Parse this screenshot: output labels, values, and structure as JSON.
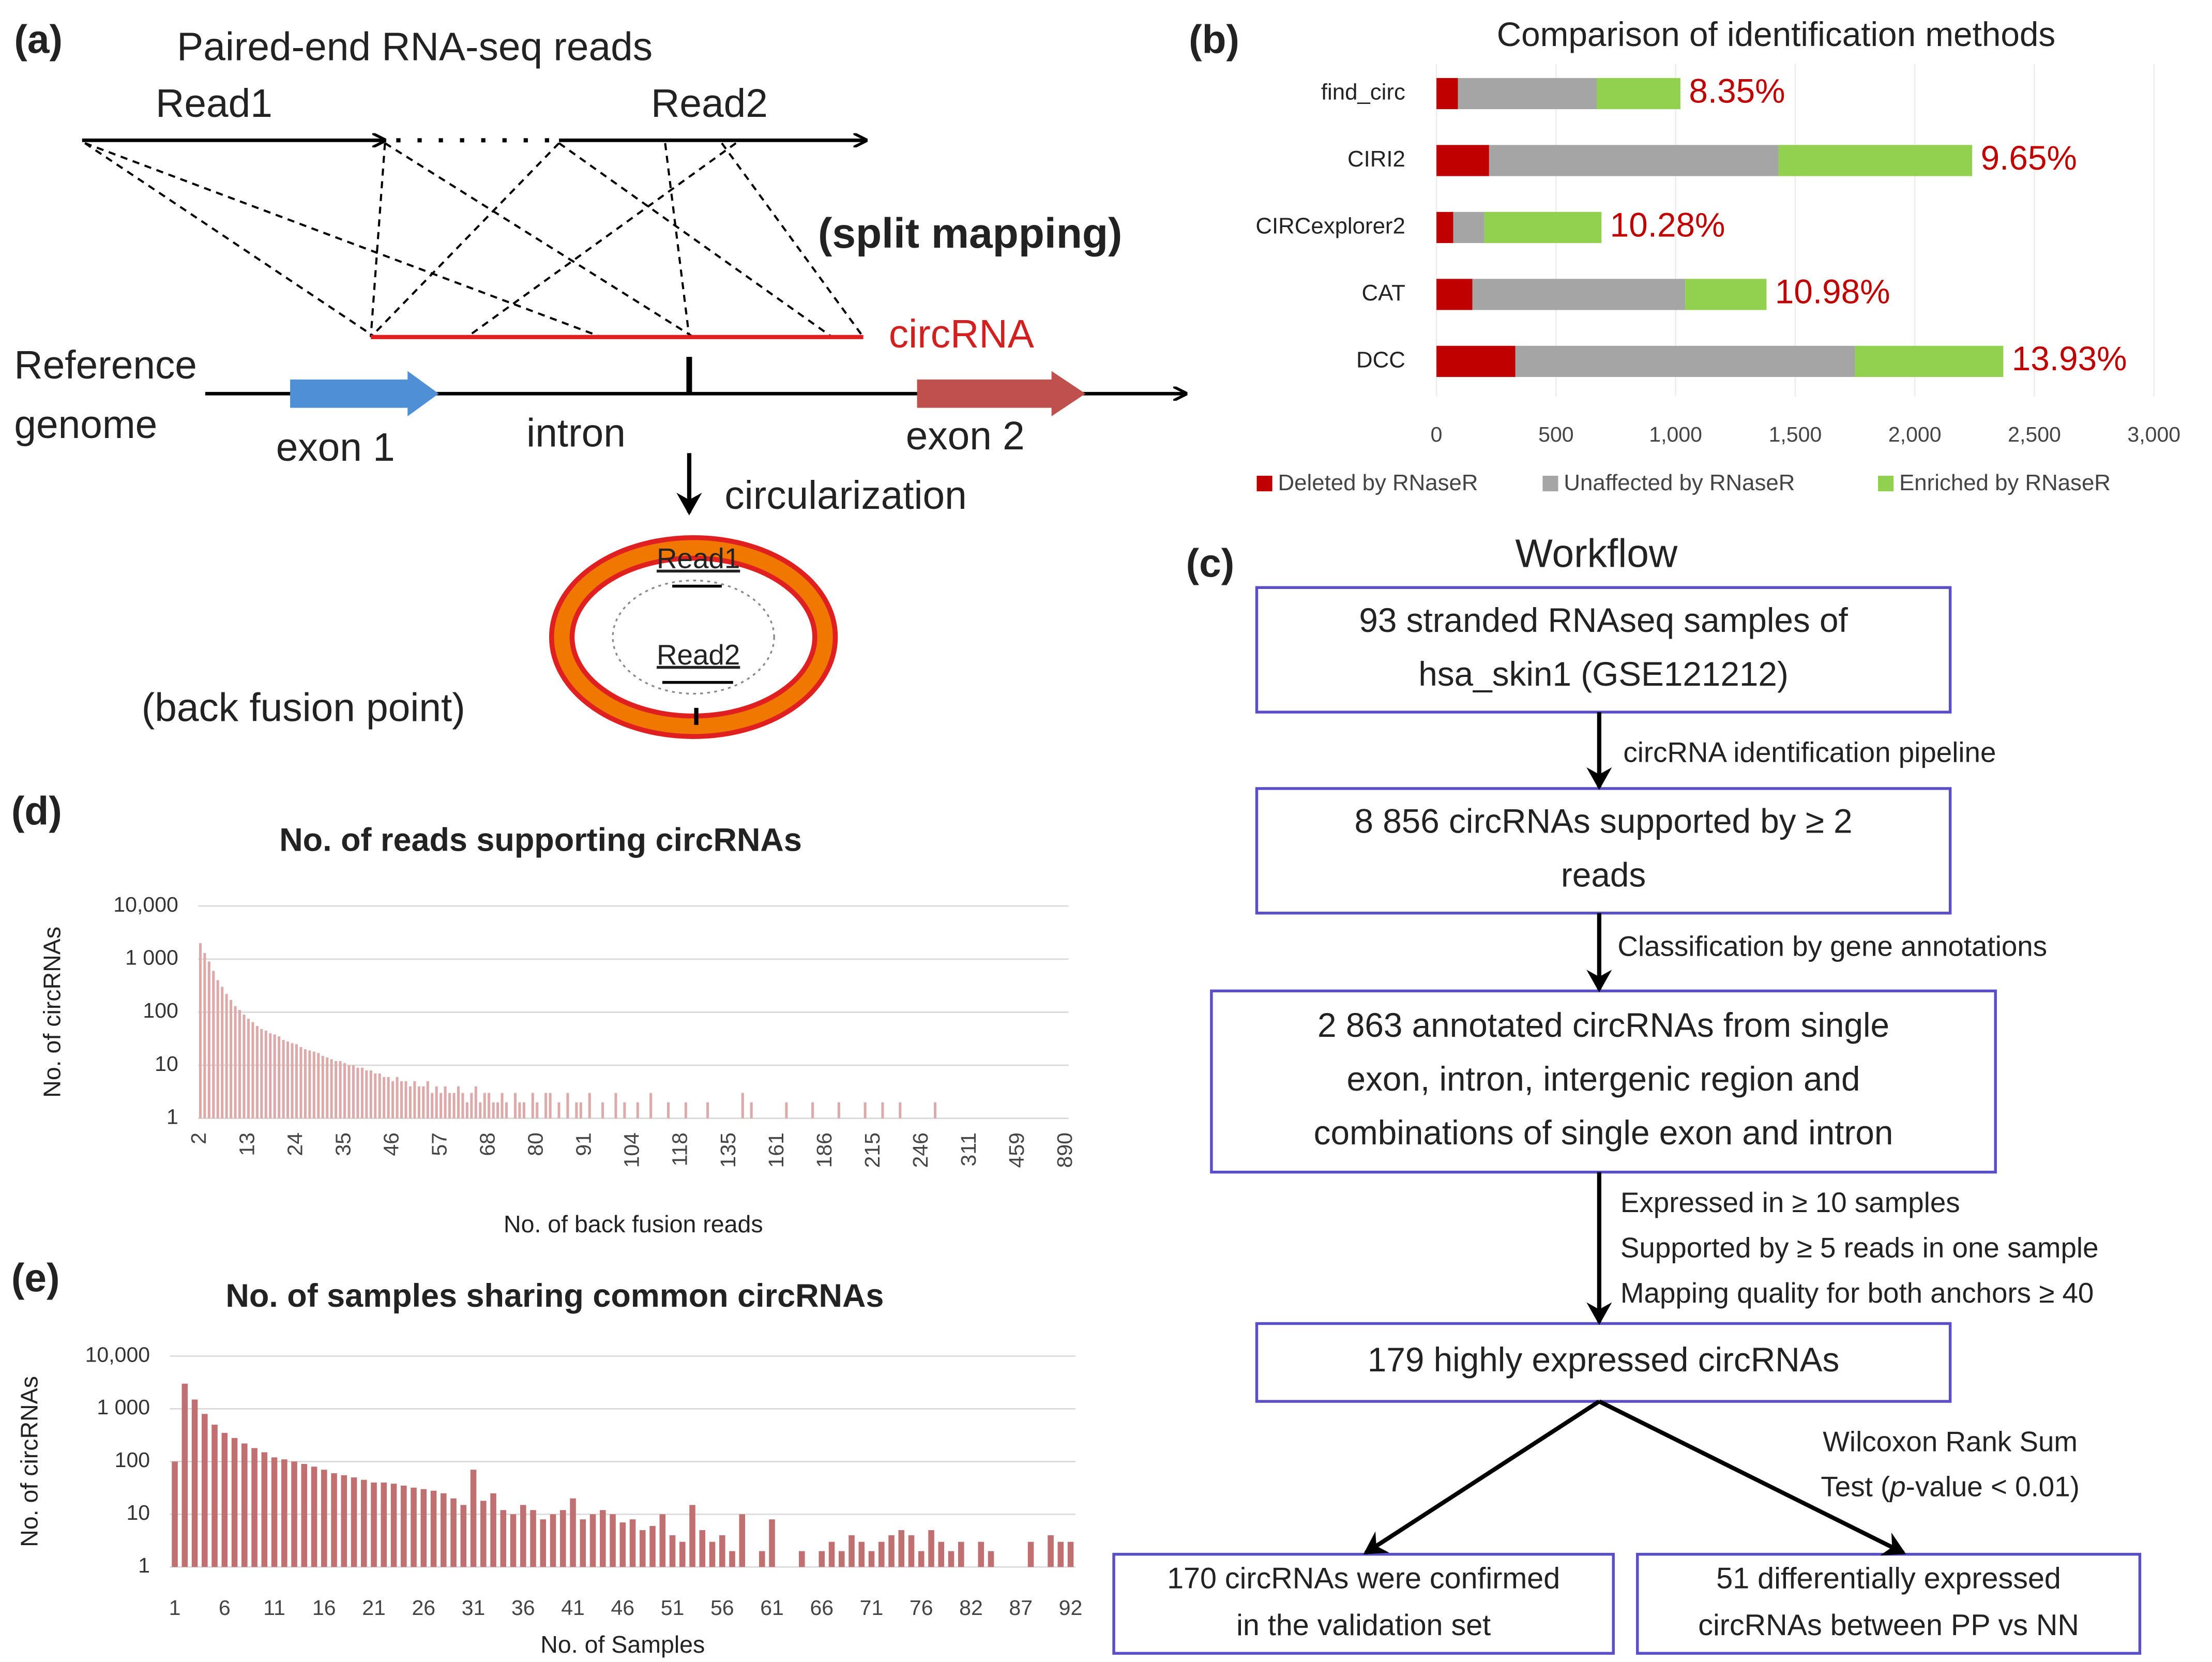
{
  "panel_labels": [
    "(a)",
    "(b)",
    "(c)",
    "(d)",
    "(e)"
  ],
  "diagram_a": {
    "title": "Paired-end RNA-seq reads",
    "read1": "Read1",
    "read2": "Read2",
    "split_mapping": "(split mapping)",
    "circrna": "circRNA",
    "reference": [
      "Reference",
      "genome"
    ],
    "exon1": "exon 1",
    "intron": "intron",
    "exon2": "exon 2",
    "circularization": "circularization",
    "circle_read1": "Read1",
    "circle_read2": "Read2",
    "back_fusion": "(back fusion point)"
  },
  "chart_data": [
    {
      "type": "stacked_bar_h",
      "title": "Comparison of identification methods",
      "categories": [
        "find_circ",
        "CIRI2",
        "CIRCexplorer2",
        "CAT",
        "DCC"
      ],
      "series": [
        {
          "name": "Deleted by RNaseR",
          "color": "#c00000",
          "values": [
            90,
            220,
            70,
            150,
            330
          ]
        },
        {
          "name": "Unaffected by RNaseR",
          "color": "#a5a5a5",
          "values": [
            580,
            1210,
            130,
            890,
            1420
          ]
        },
        {
          "name": "Enriched by RNaseR",
          "color": "#92d050",
          "values": [
            350,
            810,
            490,
            340,
            620
          ]
        }
      ],
      "annotations": [
        "8.35%",
        "9.65%",
        "10.28%",
        "10.98%",
        "13.93%"
      ],
      "annotation_color": "#c00000",
      "xlim": [
        0,
        3000
      ],
      "xticks": [
        0,
        500,
        {
          "value": 1000,
          "label": "1,000"
        },
        {
          "value": 1500,
          "label": "1,500"
        },
        {
          "value": 2000,
          "label": "2,000"
        },
        {
          "value": 2500,
          "label": "2,500"
        },
        {
          "value": 3000,
          "label": "3,000"
        }
      ],
      "legend": "bottom"
    },
    {
      "type": "bar",
      "title": "No. of reads supporting circRNAs",
      "x_label": "No. of back fusion reads",
      "y_label": "No. of circRNAs",
      "categories": [
        "2",
        null,
        null,
        null,
        null,
        null,
        null,
        null,
        null,
        null,
        null,
        "13",
        null,
        null,
        null,
        null,
        null,
        null,
        null,
        null,
        null,
        null,
        "24",
        null,
        null,
        null,
        null,
        null,
        null,
        null,
        null,
        null,
        null,
        "35",
        null,
        null,
        null,
        null,
        null,
        null,
        null,
        null,
        null,
        null,
        "46",
        null,
        null,
        null,
        null,
        null,
        null,
        null,
        null,
        null,
        null,
        "57",
        null,
        null,
        null,
        null,
        null,
        null,
        null,
        null,
        null,
        null,
        "68",
        null,
        null,
        null,
        null,
        null,
        null,
        null,
        null,
        null,
        null,
        "80",
        null,
        null,
        null,
        null,
        null,
        null,
        null,
        null,
        null,
        null,
        "91",
        null,
        null,
        null,
        null,
        null,
        null,
        null,
        null,
        null,
        null,
        "104",
        null,
        null,
        null,
        null,
        null,
        null,
        null,
        null,
        null,
        null,
        "118",
        null,
        null,
        null,
        null,
        null,
        null,
        null,
        null,
        null,
        null,
        "135",
        null,
        null,
        null,
        null,
        null,
        null,
        null,
        null,
        null,
        null,
        "161",
        null,
        null,
        null,
        null,
        null,
        null,
        null,
        null,
        null,
        null,
        "186",
        null,
        null,
        null,
        null,
        null,
        null,
        null,
        null,
        null,
        null,
        "215",
        null,
        null,
        null,
        null,
        null,
        null,
        null,
        null,
        null,
        null,
        "246",
        null,
        null,
        null,
        null,
        null,
        null,
        null,
        null,
        null,
        null,
        "311",
        null,
        null,
        null,
        null,
        null,
        null,
        null,
        null,
        null,
        null,
        "459",
        null,
        null,
        null,
        null,
        null,
        null,
        null,
        null,
        null,
        null,
        "890"
      ],
      "values": [
        2000,
        1300,
        900,
        600,
        400,
        300,
        220,
        170,
        130,
        110,
        90,
        75,
        65,
        55,
        48,
        45,
        40,
        38,
        35,
        30,
        28,
        26,
        25,
        22,
        20,
        19,
        18,
        17,
        15,
        14,
        13,
        12,
        12,
        11,
        10,
        10,
        9,
        9,
        8,
        8,
        7,
        7,
        6,
        6,
        5,
        6,
        5,
        5,
        4,
        5,
        4,
        4,
        5,
        3,
        4,
        3,
        4,
        3,
        3,
        4,
        3,
        2,
        3,
        4,
        2,
        3,
        3,
        2,
        2,
        3,
        2,
        null,
        3,
        2,
        2,
        null,
        3,
        2,
        null,
        3,
        3,
        null,
        2,
        null,
        3,
        null,
        2,
        2,
        null,
        3,
        null,
        null,
        2,
        null,
        null,
        3,
        null,
        2,
        null,
        null,
        2,
        null,
        null,
        3,
        null,
        null,
        null,
        2,
        null,
        null,
        null,
        2,
        null,
        null,
        null,
        null,
        2,
        null,
        null,
        null,
        null,
        null,
        null,
        null,
        3,
        null,
        2,
        null,
        null,
        null,
        null,
        null,
        null,
        null,
        2,
        null,
        null,
        null,
        null,
        null,
        2,
        null,
        null,
        null,
        null,
        null,
        2,
        null,
        null,
        null,
        null,
        null,
        2,
        null,
        null,
        null,
        2,
        null,
        null,
        null,
        2,
        null,
        null,
        null,
        null,
        null,
        null,
        null,
        2,
        null,
        null,
        null,
        null,
        null,
        null,
        null,
        null,
        null,
        null,
        null,
        null,
        null,
        null,
        null,
        null,
        null,
        null,
        null,
        null,
        null,
        null,
        null,
        null,
        null,
        null,
        null,
        null,
        null,
        null
      ],
      "color": "#dcaaaa",
      "log_y": true,
      "ylim": [
        1,
        10000
      ],
      "yticks": [
        1,
        10,
        100,
        {
          "value": 1000,
          "label": "1 000"
        },
        {
          "value": 10000,
          "label": "10,000"
        }
      ],
      "grid": true
    },
    {
      "type": "bar",
      "title": "No. of samples sharing common circRNAs",
      "x_label": "No. of Samples",
      "y_label": "No. of circRNAs",
      "categories": [
        "1",
        null,
        null,
        null,
        null,
        "6",
        null,
        null,
        null,
        null,
        "11",
        null,
        null,
        null,
        null,
        "16",
        null,
        null,
        null,
        null,
        "21",
        null,
        null,
        null,
        null,
        "26",
        null,
        null,
        null,
        null,
        "31",
        null,
        null,
        null,
        null,
        "36",
        null,
        null,
        null,
        null,
        "41",
        null,
        null,
        null,
        null,
        "46",
        null,
        null,
        null,
        null,
        "51",
        null,
        null,
        null,
        null,
        "56",
        null,
        null,
        null,
        null,
        "61",
        null,
        null,
        null,
        null,
        "66",
        null,
        null,
        null,
        null,
        "71",
        null,
        null,
        null,
        null,
        "76",
        null,
        null,
        null,
        null,
        "82",
        null,
        null,
        null,
        null,
        "87",
        null,
        null,
        null,
        null,
        "92"
      ],
      "values": [
        100,
        3000,
        1500,
        800,
        500,
        350,
        280,
        220,
        180,
        150,
        120,
        110,
        100,
        90,
        80,
        70,
        60,
        55,
        50,
        45,
        40,
        40,
        38,
        35,
        32,
        30,
        28,
        25,
        20,
        15,
        70,
        18,
        25,
        12,
        10,
        15,
        12,
        8,
        10,
        12,
        20,
        8,
        10,
        12,
        10,
        7,
        8,
        5,
        6,
        10,
        4,
        3,
        15,
        5,
        3,
        4,
        2,
        10,
        null,
        2,
        8,
        null,
        null,
        2,
        null,
        2,
        3,
        2,
        4,
        3,
        2,
        3,
        4,
        5,
        4,
        2,
        5,
        3,
        2,
        3,
        null,
        3,
        2,
        null,
        null,
        null,
        3,
        null,
        4,
        3,
        3
      ],
      "color": "#c07070",
      "log_y": true,
      "ylim": [
        1,
        10000
      ],
      "yticks": [
        1,
        10,
        100,
        {
          "value": 1000,
          "label": "1 000"
        },
        {
          "value": 10000,
          "label": "10,000"
        }
      ],
      "grid": true
    }
  ],
  "workflow": {
    "title": "Workflow",
    "boxes": [
      {
        "lines": [
          "93 stranded RNAseq samples of",
          "hsa_skin1 (GSE121212)"
        ]
      },
      {
        "lines": [
          "8 856 circRNAs supported by ≥ 2",
          "reads"
        ]
      },
      {
        "lines": [
          "2 863 annotated circRNAs from single",
          "exon, intron, intergenic region and",
          "combinations of single exon and intron"
        ]
      },
      {
        "lines": [
          "179 highly expressed circRNAs"
        ]
      },
      {
        "lines": [
          "170 circRNAs were confirmed",
          "in the validation set"
        ]
      },
      {
        "lines": [
          "51 differentially expressed",
          "circRNAs between PP vs NN"
        ]
      }
    ],
    "steps": [
      {
        "lines": [
          "circRNA identification pipeline"
        ]
      },
      {
        "lines": [
          "Classification by gene annotations"
        ]
      },
      {
        "lines": [
          "Expressed in ≥ 10 samples",
          "Supported by ≥ 5 reads in one sample",
          "Mapping quality for both anchors ≥ 40"
        ]
      },
      {
        "lines": [
          "Wilcoxon Rank Sum"
        ],
        "test": [
          "Test (",
          "p",
          "-value < 0.01)"
        ]
      }
    ]
  }
}
